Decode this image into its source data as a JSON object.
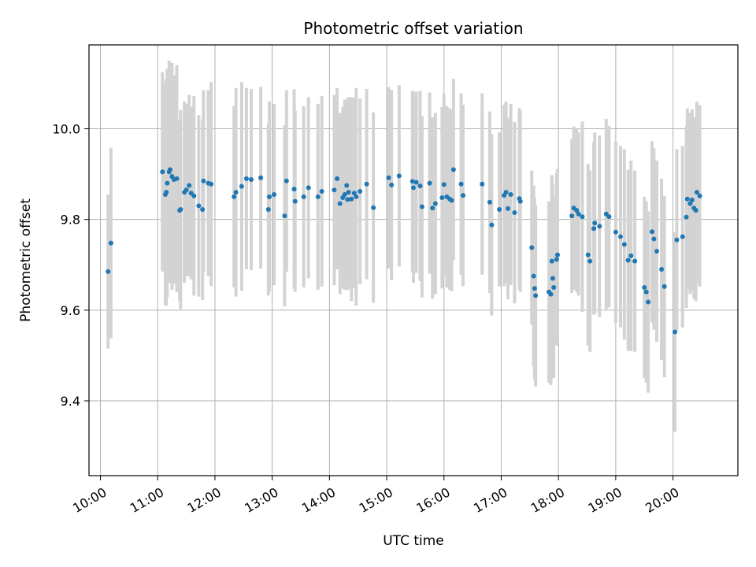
{
  "chart_data": {
    "type": "scatter",
    "title": "Photometric offset variation",
    "xlabel": "UTC time",
    "ylabel": "Photometric offset",
    "xlim": [
      "09:48",
      "21:08"
    ],
    "ylim": [
      9.235,
      10.185
    ],
    "x_ticks": [
      "10:00",
      "11:00",
      "12:00",
      "13:00",
      "14:00",
      "15:00",
      "16:00",
      "17:00",
      "18:00",
      "19:00",
      "20:00"
    ],
    "y_ticks": [
      9.4,
      9.6,
      9.8,
      10.0
    ],
    "y_tick_labels": [
      "9.4",
      "9.6",
      "9.8",
      "10.0"
    ],
    "grid": true,
    "marker_color": "#1f77b4",
    "errorbar_color": "#d3d3d3",
    "series": [
      {
        "x": [
          "10:08",
          "10:11",
          "11:05",
          "11:08",
          "11:09",
          "11:10",
          "11:12",
          "11:13",
          "11:15",
          "11:17",
          "11:20",
          "11:23",
          "11:24",
          "11:28",
          "11:30",
          "11:33",
          "11:35",
          "11:38",
          "11:43",
          "11:47",
          "11:48",
          "11:53",
          "11:56",
          "12:20",
          "12:22",
          "12:28",
          "12:33",
          "12:38",
          "12:48",
          "12:56",
          "12:57",
          "13:02",
          "13:13",
          "13:15",
          "13:23",
          "13:24",
          "13:33",
          "13:38",
          "13:48",
          "13:52",
          "14:05",
          "14:08",
          "14:11",
          "14:14",
          "14:16",
          "14:18",
          "14:19",
          "14:20",
          "14:23",
          "14:26",
          "14:28",
          "14:32",
          "14:39",
          "14:46",
          "15:02",
          "15:05",
          "15:13",
          "15:27",
          "15:28",
          "15:31",
          "15:35",
          "15:37",
          "15:45",
          "15:48",
          "15:51",
          "15:58",
          "16:00",
          "16:03",
          "16:06",
          "16:08",
          "16:10",
          "16:18",
          "16:20",
          "16:40",
          "16:48",
          "16:50",
          "16:58",
          "17:03",
          "17:05",
          "17:07",
          "17:10",
          "17:14",
          "17:19",
          "17:20",
          "17:32",
          "17:34",
          "17:35",
          "17:36",
          "17:50",
          "17:52",
          "17:53",
          "17:54",
          "17:55",
          "17:58",
          "17:59",
          "18:14",
          "18:16",
          "18:19",
          "18:21",
          "18:25",
          "18:31",
          "18:33",
          "18:37",
          "18:38",
          "18:43",
          "18:50",
          "18:53",
          "19:00",
          "19:05",
          "19:09",
          "19:13",
          "19:16",
          "19:20",
          "19:30",
          "19:32",
          "19:34",
          "19:38",
          "19:40",
          "19:43",
          "19:48",
          "19:51",
          "20:02",
          "20:04",
          "20:10",
          "20:14",
          "20:15",
          "20:18",
          "20:20",
          "20:22",
          "20:24",
          "20:25",
          "20:28"
        ],
        "y": [
          9.685,
          9.748,
          9.905,
          9.855,
          9.86,
          9.88,
          9.905,
          9.91,
          9.895,
          9.888,
          9.89,
          9.82,
          9.822,
          9.86,
          9.865,
          9.875,
          9.858,
          9.852,
          9.83,
          9.822,
          9.885,
          9.88,
          9.878,
          9.85,
          9.86,
          9.873,
          9.89,
          9.888,
          9.892,
          9.822,
          9.85,
          9.855,
          9.808,
          9.885,
          9.867,
          9.84,
          9.85,
          9.87,
          9.85,
          9.862,
          9.865,
          9.89,
          9.835,
          9.848,
          9.855,
          9.875,
          9.844,
          9.86,
          9.845,
          9.858,
          9.85,
          9.862,
          9.878,
          9.826,
          9.892,
          9.876,
          9.896,
          9.884,
          9.87,
          9.882,
          9.874,
          9.828,
          9.88,
          9.825,
          9.835,
          9.848,
          9.877,
          9.85,
          9.845,
          9.842,
          9.91,
          9.878,
          9.853,
          9.878,
          9.838,
          9.788,
          9.822,
          9.853,
          9.86,
          9.824,
          9.855,
          9.815,
          9.846,
          9.84,
          9.738,
          9.675,
          9.648,
          9.632,
          9.64,
          9.635,
          9.708,
          9.67,
          9.65,
          9.712,
          9.722,
          9.808,
          9.825,
          9.82,
          9.812,
          9.806,
          9.722,
          9.708,
          9.78,
          9.792,
          9.785,
          9.812,
          9.806,
          9.772,
          9.762,
          9.745,
          9.71,
          9.72,
          9.708,
          9.65,
          9.64,
          9.618,
          9.773,
          9.757,
          9.73,
          9.69,
          9.652,
          9.552,
          9.755,
          9.762,
          9.805,
          9.845,
          9.835,
          9.843,
          9.825,
          9.82,
          9.86,
          9.852
        ],
        "yerr": [
          0.17,
          0.21,
          0.22,
          0.245,
          0.25,
          0.252,
          0.245,
          0.23,
          0.25,
          0.23,
          0.25,
          0.2,
          0.22,
          0.2,
          0.19,
          0.2,
          0.19,
          0.22,
          0.2,
          0.2,
          0.2,
          0.205,
          0.225,
          0.2,
          0.23,
          0.23,
          0.2,
          0.2,
          0.2,
          0.19,
          0.21,
          0.2,
          0.2,
          0.2,
          0.22,
          0.2,
          0.2,
          0.2,
          0.205,
          0.21,
          0.21,
          0.2,
          0.2,
          0.2,
          0.21,
          0.19,
          0.2,
          0.21,
          0.225,
          0.21,
          0.24,
          0.205,
          0.21,
          0.21,
          0.2,
          0.21,
          0.2,
          0.2,
          0.21,
          0.2,
          0.21,
          0.2,
          0.2,
          0.2,
          0.2,
          0.2,
          0.2,
          0.2,
          0.2,
          0.2,
          0.2,
          0.2,
          0.2,
          0.2,
          0.2,
          0.2,
          0.17,
          0.2,
          0.2,
          0.2,
          0.2,
          0.2,
          0.2,
          0.2,
          0.17,
          0.2,
          0.2,
          0.2,
          0.2,
          0.2,
          0.19,
          0.21,
          0.2,
          0.19,
          0.19,
          0.17,
          0.18,
          0.18,
          0.18,
          0.21,
          0.2,
          0.2,
          0.19,
          0.2,
          0.2,
          0.21,
          0.2,
          0.2,
          0.2,
          0.21,
          0.2,
          0.21,
          0.2,
          0.2,
          0.2,
          0.2,
          0.2,
          0.2,
          0.2,
          0.2,
          0.2,
          0.22,
          0.2,
          0.2,
          0.2,
          0.2,
          0.2,
          0.2,
          0.2,
          0.2,
          0.2,
          0.2
        ]
      }
    ]
  }
}
